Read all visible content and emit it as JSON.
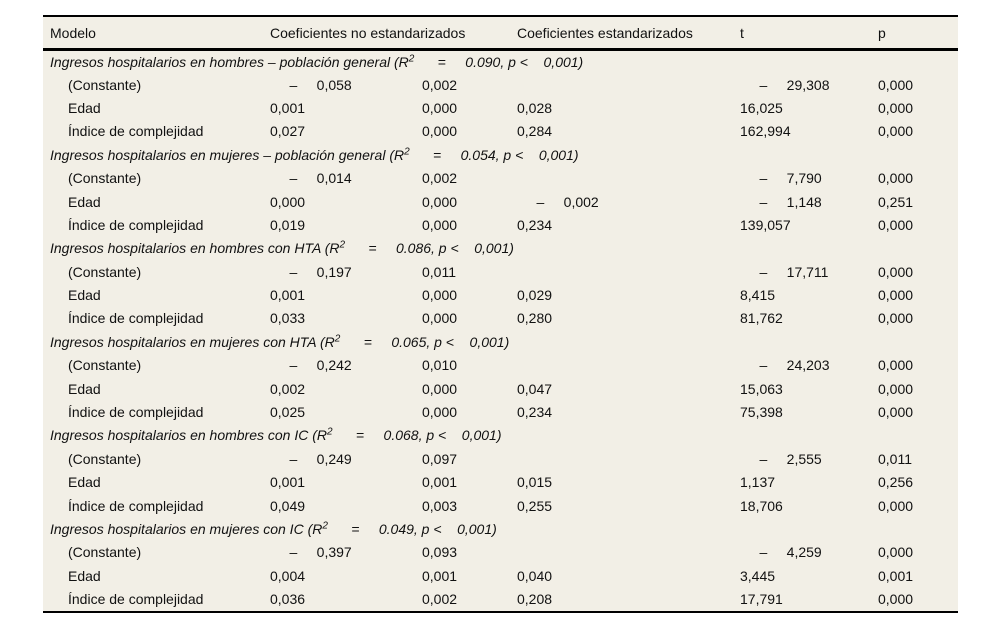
{
  "header": {
    "columns": [
      "Modelo",
      "Coeficientes no estandarizados",
      "Coeficientes estandarizados",
      "t",
      "p"
    ]
  },
  "colors": {
    "table_background": "#f2efe6",
    "rule": "#000000",
    "text": "#111111"
  },
  "sections": [
    {
      "title_prefix": "Ingresos hospitalarios en hombres – población general (R",
      "title_sup": "2",
      "title_suffix": "      =     0.090, p <    0,001)",
      "rows": [
        {
          "label": "(Constante)",
          "b": "     –     0,058",
          "se": "0,002",
          "beta": "",
          "t": "     –     29,308",
          "p": "0,000"
        },
        {
          "label": "Edad",
          "b": "0,001",
          "se": "0,000",
          "beta": "0,028",
          "t": "16,025",
          "p": "0,000"
        },
        {
          "label": "Índice de complejidad",
          "b": "0,027",
          "se": "0,000",
          "beta": "0,284",
          "t": "162,994",
          "p": "0,000"
        }
      ]
    },
    {
      "title_prefix": "Ingresos hospitalarios en mujeres – población general (R",
      "title_sup": "2",
      "title_suffix": "      =     0.054, p <    0,001)",
      "rows": [
        {
          "label": "(Constante)",
          "b": "     –     0,014",
          "se": "0,002",
          "beta": "",
          "t": "     –     7,790",
          "p": "0,000"
        },
        {
          "label": "Edad",
          "b": "0,000",
          "se": "0,000",
          "beta": "     –     0,002",
          "t": "     –     1,148",
          "p": "0,251"
        },
        {
          "label": "Índice de complejidad",
          "b": "0,019",
          "se": "0,000",
          "beta": "0,234",
          "t": "139,057",
          "p": "0,000"
        }
      ]
    },
    {
      "title_prefix": "Ingresos hospitalarios en hombres con HTA (R",
      "title_sup": "2",
      "title_suffix": "      =     0.086, p <    0,001)",
      "rows": [
        {
          "label": "(Constante)",
          "b": "     –     0,197",
          "se": "0,011",
          "beta": "",
          "t": "     –     17,711",
          "p": "0,000"
        },
        {
          "label": "Edad",
          "b": "0,001",
          "se": "0,000",
          "beta": "0,029",
          "t": "8,415",
          "p": "0,000"
        },
        {
          "label": "Índice de complejidad",
          "b": "0,033",
          "se": "0,000",
          "beta": "0,280",
          "t": "81,762",
          "p": "0,000"
        }
      ]
    },
    {
      "title_prefix": "Ingresos hospitalarios en mujeres con HTA (R",
      "title_sup": "2",
      "title_suffix": "      =     0.065, p <    0,001)",
      "rows": [
        {
          "label": "(Constante)",
          "b": "     –     0,242",
          "se": "0,010",
          "beta": "",
          "t": "     –     24,203",
          "p": "0,000"
        },
        {
          "label": "Edad",
          "b": "0,002",
          "se": "0,000",
          "beta": "0,047",
          "t": "15,063",
          "p": "0,000"
        },
        {
          "label": "Índice de complejidad",
          "b": "0,025",
          "se": "0,000",
          "beta": "0,234",
          "t": "75,398",
          "p": "0,000"
        }
      ]
    },
    {
      "title_prefix": "Ingresos hospitalarios en hombres con IC (R",
      "title_sup": "2",
      "title_suffix": "      =     0.068, p <    0,001)",
      "rows": [
        {
          "label": "(Constante)",
          "b": "     –     0,249",
          "se": "0,097",
          "beta": "",
          "t": "     –     2,555",
          "p": "0,011"
        },
        {
          "label": "Edad",
          "b": "0,001",
          "se": "0,001",
          "beta": "0,015",
          "t": "1,137",
          "p": "0,256"
        },
        {
          "label": "Índice de complejidad",
          "b": "0,049",
          "se": "0,003",
          "beta": "0,255",
          "t": "18,706",
          "p": "0,000"
        }
      ]
    },
    {
      "title_prefix": "Ingresos hospitalarios en mujeres con IC (R",
      "title_sup": "2",
      "title_suffix": "      =     0.049, p <    0,001)",
      "rows": [
        {
          "label": "(Constante)",
          "b": "     –     0,397",
          "se": "0,093",
          "beta": "",
          "t": "     –     4,259",
          "p": "0,000"
        },
        {
          "label": "Edad",
          "b": "0,004",
          "se": "0,001",
          "beta": "0,040",
          "t": "3,445",
          "p": "0,001"
        },
        {
          "label": "Índice de complejidad",
          "b": "0,036",
          "se": "0,002",
          "beta": "0,208",
          "t": "17,791",
          "p": "0,000"
        }
      ]
    }
  ]
}
